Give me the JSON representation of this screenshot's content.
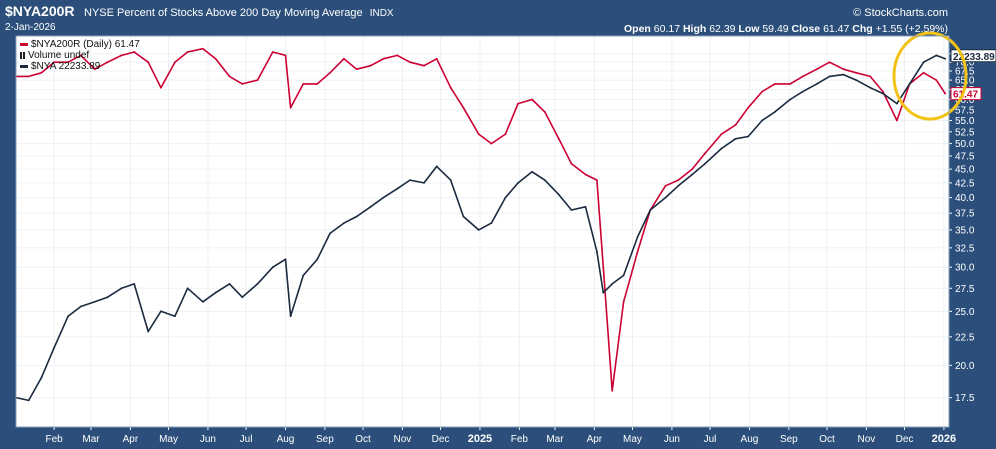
{
  "header": {
    "symbol": "$NYA200R",
    "title": "NYSE Percent of Stocks Above 200 Day Moving Average",
    "exchange": "INDX",
    "date": "2-Jan-2026",
    "source": "© StockCharts.com",
    "open_label": "Open",
    "open": "60.17",
    "high_label": "High",
    "high": "62.39",
    "low_label": "Low",
    "low": "59.49",
    "close_label": "Close",
    "close": "61.47",
    "chg_label": "Chg",
    "chg": "+1.55 (+2.59%)"
  },
  "legend": [
    {
      "text": "$NYA200R (Daily) 61.47",
      "color": "#cc0033",
      "kind": "line"
    },
    {
      "text": "Volume undef",
      "color": "#222222",
      "kind": "bar"
    },
    {
      "text": "$NYA 22233.89",
      "color": "#1a2a3f",
      "kind": "line"
    }
  ],
  "colors": {
    "background": "#2b4f7a",
    "plot": "#ffffff",
    "nya200r": "#cc0033",
    "nya": "#1a2a3f",
    "highlight": "#f2c316"
  },
  "chart_data": {
    "type": "line",
    "yaxis_scale": "log",
    "ylim": [
      15.5,
      78
    ],
    "y_ticks": [
      "17.5",
      "20.0",
      "22.5",
      "25.0",
      "27.5",
      "30.0",
      "32.5",
      "35.0",
      "37.5",
      "40.0",
      "42.5",
      "45.0",
      "47.5",
      "50.0",
      "52.5",
      "55.0",
      "57.5",
      "60.0",
      "62.5",
      "65.0",
      "67.5",
      "70.0",
      "72.5"
    ],
    "x_ticks": [
      "Feb",
      "Mar",
      "Apr",
      "May",
      "Jun",
      "Jul",
      "Aug",
      "Sep",
      "Oct",
      "Nov",
      "Dec",
      "2025",
      "Feb",
      "Mar",
      "Apr",
      "May",
      "Jun",
      "Jul",
      "Aug",
      "Sep",
      "Oct",
      "Nov",
      "Dec",
      "2026"
    ],
    "x": [
      "2024-01-02",
      "2024-01-12",
      "2024-01-22",
      "2024-02-01",
      "2024-02-12",
      "2024-02-22",
      "2024-03-04",
      "2024-03-14",
      "2024-03-25",
      "2024-04-04",
      "2024-04-15",
      "2024-04-25",
      "2024-05-06",
      "2024-05-16",
      "2024-05-28",
      "2024-06-07",
      "2024-06-18",
      "2024-06-28",
      "2024-07-10",
      "2024-07-22",
      "2024-08-01",
      "2024-08-05",
      "2024-08-15",
      "2024-08-26",
      "2024-09-05",
      "2024-09-16",
      "2024-09-26",
      "2024-10-07",
      "2024-10-17",
      "2024-10-28",
      "2024-11-07",
      "2024-11-18",
      "2024-11-28",
      "2024-12-09",
      "2024-12-19",
      "2024-12-31",
      "2025-01-10",
      "2025-01-21",
      "2025-01-31",
      "2025-02-11",
      "2025-02-21",
      "2025-03-04",
      "2025-03-14",
      "2025-03-25",
      "2025-04-03",
      "2025-04-08",
      "2025-04-15",
      "2025-04-24",
      "2025-05-05",
      "2025-05-15",
      "2025-05-27",
      "2025-06-06",
      "2025-06-17",
      "2025-06-27",
      "2025-07-10",
      "2025-07-21",
      "2025-07-31",
      "2025-08-11",
      "2025-08-21",
      "2025-09-02",
      "2025-09-12",
      "2025-09-23",
      "2025-10-03",
      "2025-10-14",
      "2025-10-24",
      "2025-11-04",
      "2025-11-14",
      "2025-11-25",
      "2025-12-05",
      "2025-12-16",
      "2025-12-26",
      "2026-01-02"
    ],
    "series": [
      {
        "name": "$NYA200R (Daily) 61.47",
        "values": [
          66,
          66,
          67,
          70,
          70,
          72,
          68,
          70,
          72,
          73,
          70,
          63,
          70,
          73,
          74,
          71,
          66,
          64,
          65,
          73,
          72,
          58,
          64,
          64,
          67,
          71,
          68,
          69,
          71,
          72,
          70,
          69,
          71,
          63,
          58,
          52,
          50,
          52,
          59,
          60,
          57,
          51,
          46,
          44,
          43,
          30,
          18,
          26,
          32,
          38,
          42,
          43,
          45,
          48,
          52,
          54,
          58,
          62,
          64,
          64,
          66,
          68,
          70,
          68,
          67,
          66,
          62,
          55,
          64,
          67,
          65,
          61.47
        ]
      },
      {
        "name": "$NYA 22233.89",
        "values": [
          17.5,
          17.3,
          19.0,
          21.5,
          24.5,
          25.5,
          26.0,
          26.5,
          27.5,
          28.0,
          23.0,
          25.0,
          24.5,
          27.5,
          26.0,
          27.0,
          28.0,
          26.5,
          28.0,
          30.0,
          31.0,
          24.5,
          29.0,
          31.0,
          34.5,
          36.0,
          37.0,
          38.5,
          40.0,
          41.5,
          43.0,
          42.5,
          45.5,
          43.0,
          37.0,
          35.0,
          36.0,
          40.0,
          42.5,
          44.5,
          43.0,
          40.5,
          38.0,
          38.5,
          32.0,
          27.0,
          28.0,
          29.0,
          34.0,
          38.0,
          40.0,
          42.0,
          44.0,
          46.0,
          49.0,
          51.0,
          51.5,
          55.0,
          57.0,
          60.0,
          62.0,
          64.0,
          66.0,
          66.5,
          65.0,
          63.0,
          61.5,
          59.0,
          64.0,
          70.0,
          72.0,
          71.0
        ]
      }
    ],
    "last_values": {
      "nya200r": "61.47",
      "nya": "22233.89"
    }
  }
}
